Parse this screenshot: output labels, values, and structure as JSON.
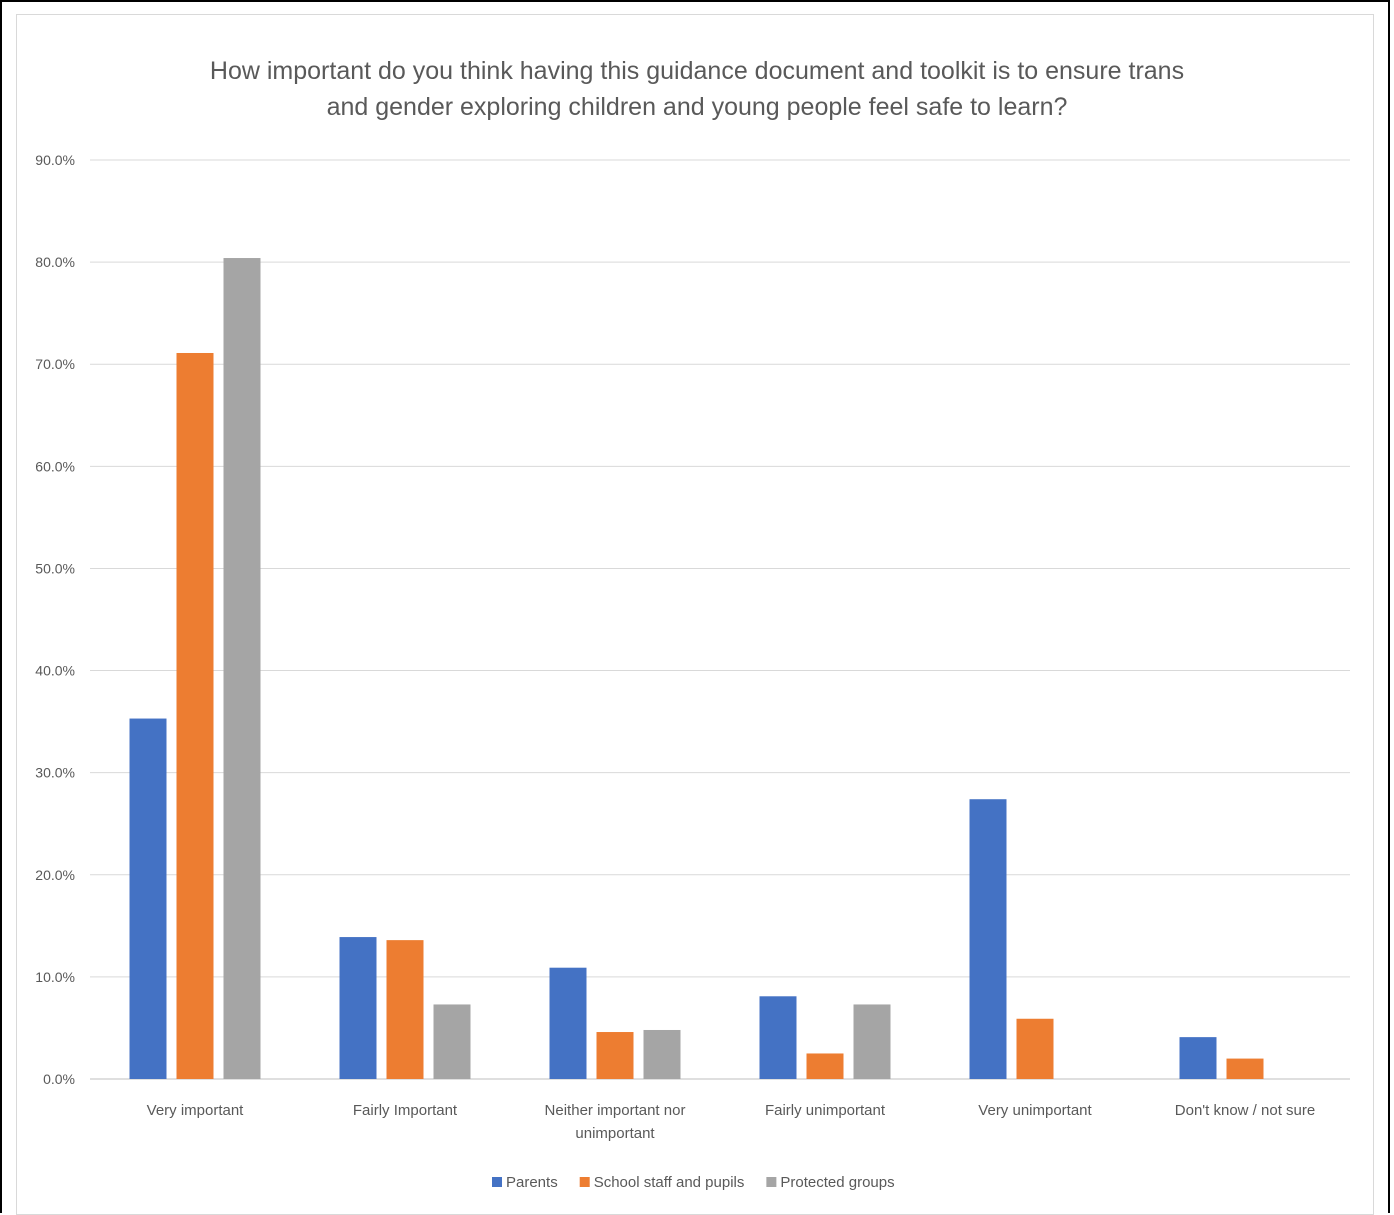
{
  "chart_data": {
    "type": "bar",
    "title_lines": [
      "How important do you think having this guidance document and toolkit is to ensure trans",
      "and gender exploring children and young people feel safe to learn?"
    ],
    "categories": [
      [
        "Very important"
      ],
      [
        "Fairly Important"
      ],
      [
        "Neither important nor",
        "unimportant"
      ],
      [
        "Fairly unimportant"
      ],
      [
        "Very unimportant"
      ],
      [
        "Don't know / not sure"
      ]
    ],
    "series": [
      {
        "name": "Parents",
        "color": "#4472c4",
        "values": [
          35.3,
          13.9,
          10.9,
          8.1,
          27.4,
          4.1
        ]
      },
      {
        "name": "School staff and pupils",
        "color": "#ed7d31",
        "values": [
          71.1,
          13.6,
          4.6,
          2.5,
          5.9,
          2.0
        ]
      },
      {
        "name": "Protected groups",
        "color": "#a5a5a5",
        "values": [
          80.4,
          7.3,
          4.8,
          7.3,
          0,
          0
        ]
      }
    ],
    "yticks": [
      "0.0%",
      "10.0%",
      "20.0%",
      "30.0%",
      "40.0%",
      "50.0%",
      "60.0%",
      "70.0%",
      "80.0%",
      "90.0%"
    ],
    "ylim": [
      0,
      90
    ],
    "grid": true,
    "legend_position": "bottom"
  }
}
